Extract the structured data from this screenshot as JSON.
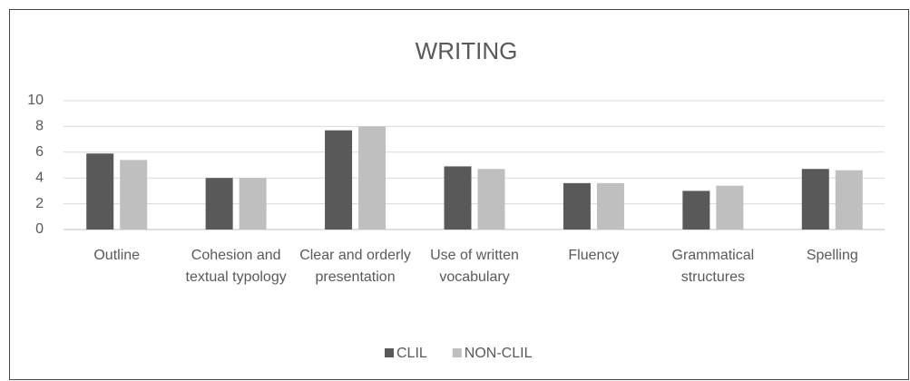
{
  "chart_data": {
    "type": "bar",
    "title": "WRITING",
    "categories": [
      "Outline",
      "Cohesion and textual typology",
      "Clear and orderly presentation",
      "Use of written vocabulary",
      "Fluency",
      "Grammatical structures",
      "Spelling"
    ],
    "series": [
      {
        "name": "CLIL",
        "color": "#595959",
        "values": [
          5.9,
          4.0,
          7.7,
          4.9,
          3.6,
          3.0,
          4.7
        ]
      },
      {
        "name": "NON-CLIL",
        "color": "#bfbfbf",
        "values": [
          5.4,
          4.0,
          8.0,
          4.7,
          3.6,
          3.4,
          4.6
        ]
      }
    ],
    "ylim": [
      0,
      10
    ],
    "yticks": [
      0,
      2,
      4,
      6,
      8,
      10
    ],
    "grid": true,
    "legend": "bottom"
  }
}
